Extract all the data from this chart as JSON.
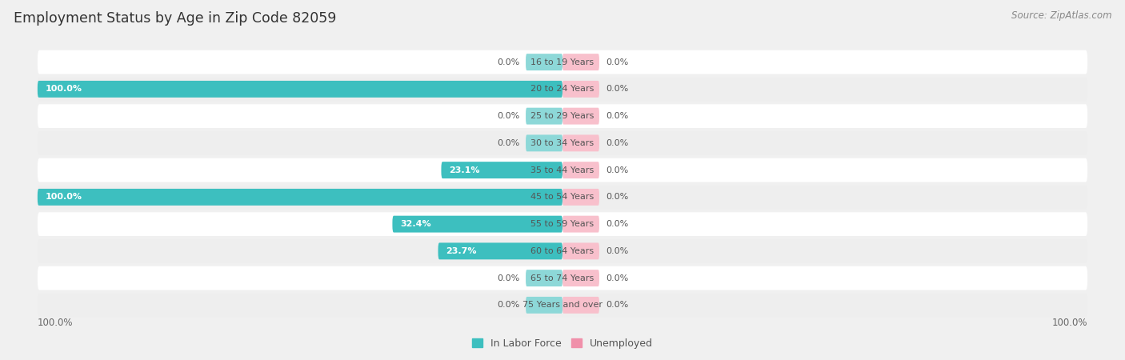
{
  "title": "Employment Status by Age in Zip Code 82059",
  "source": "Source: ZipAtlas.com",
  "age_groups": [
    "16 to 19 Years",
    "20 to 24 Years",
    "25 to 29 Years",
    "30 to 34 Years",
    "35 to 44 Years",
    "45 to 54 Years",
    "55 to 59 Years",
    "60 to 64 Years",
    "65 to 74 Years",
    "75 Years and over"
  ],
  "in_labor_force": [
    0.0,
    100.0,
    0.0,
    0.0,
    23.1,
    100.0,
    32.4,
    23.7,
    0.0,
    0.0
  ],
  "unemployed": [
    0.0,
    0.0,
    0.0,
    0.0,
    0.0,
    0.0,
    0.0,
    0.0,
    0.0,
    0.0
  ],
  "labor_force_color": "#3dbfbf",
  "labor_force_color_light": "#8dd8d8",
  "unemployed_color": "#f090aa",
  "unemployed_color_light": "#f8c0cc",
  "row_bg_white": "#ffffff",
  "row_bg_gray": "#eeeeee",
  "label_color": "#555555",
  "title_color": "#333333",
  "source_color": "#888888",
  "axis_label_color": "#666666",
  "legend_labor": "In Labor Force",
  "legend_unemployed": "Unemployed",
  "background_color": "#f0f0f0"
}
